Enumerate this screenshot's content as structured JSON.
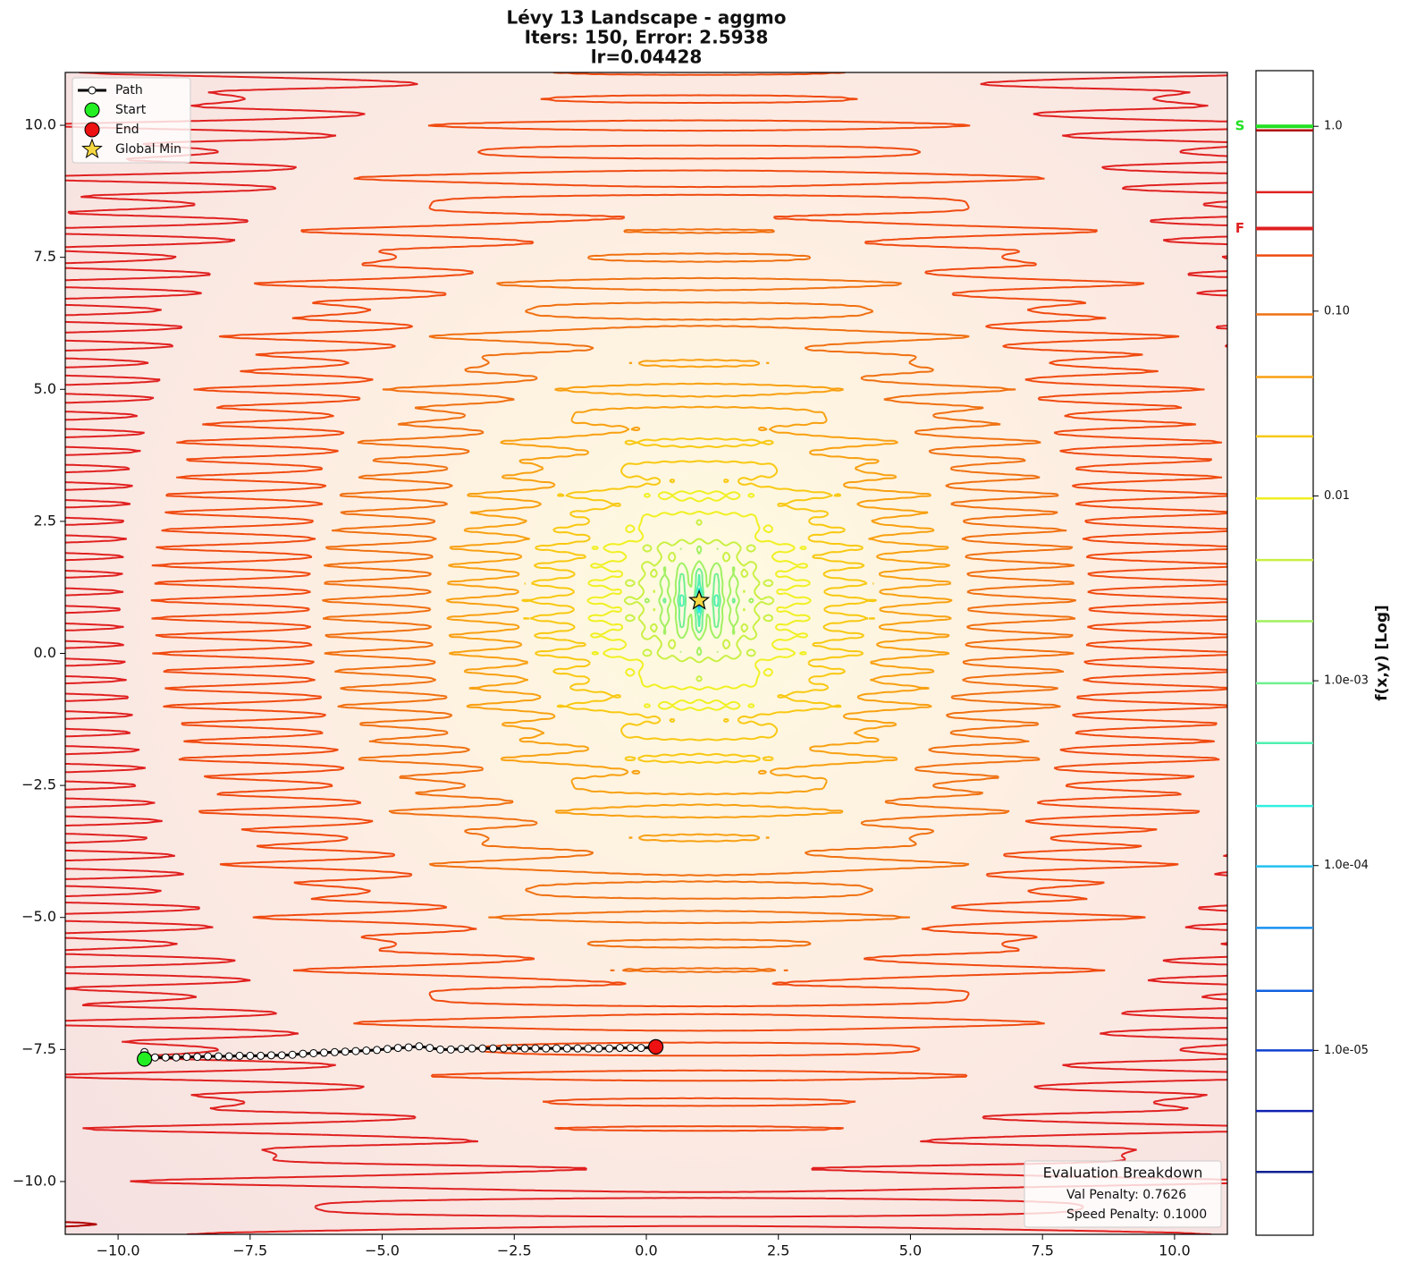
{
  "chart_data": {
    "type": "contour",
    "title": [
      "Lévy 13 Landscape - aggmo",
      "Iters: 150, Error: 2.5938",
      "lr=0.04428"
    ],
    "xlim": [
      -11,
      11
    ],
    "ylim": [
      -11,
      11
    ],
    "xticks": [
      {
        "value": -10,
        "label": "−10.0"
      },
      {
        "value": -7.5,
        "label": "−7.5"
      },
      {
        "value": -5,
        "label": "−5.0"
      },
      {
        "value": -2.5,
        "label": "−2.5"
      },
      {
        "value": 0,
        "label": "0.0"
      },
      {
        "value": 2.5,
        "label": "2.5"
      },
      {
        "value": 5,
        "label": "5.0"
      },
      {
        "value": 7.5,
        "label": "7.5"
      },
      {
        "value": 10,
        "label": "10.0"
      }
    ],
    "yticks": [
      {
        "value": -10,
        "label": "−10.0"
      },
      {
        "value": -7.5,
        "label": "−7.5"
      },
      {
        "value": -5,
        "label": "−5.0"
      },
      {
        "value": -2.5,
        "label": "−2.5"
      },
      {
        "value": 0,
        "label": "0.0"
      },
      {
        "value": 2.5,
        "label": "2.5"
      },
      {
        "value": 5,
        "label": "5.0"
      },
      {
        "value": 7.5,
        "label": "7.5"
      },
      {
        "value": 10,
        "label": "10.0"
      }
    ],
    "contour_levels": [
      0.95,
      0.44,
      0.2,
      0.096,
      0.044,
      0.021,
      0.0097,
      0.0045,
      0.0021,
      0.00097,
      0.00046,
      0.00021,
      9.9e-05,
      4.6e-05,
      2.1e-05,
      1e-05,
      4.7e-06,
      2.2e-06
    ],
    "contour_colors": [
      "#b00000",
      "#e02020",
      "#f04a10",
      "#f07010",
      "#f8a010",
      "#f8c810",
      "#f0f020",
      "#c8f040",
      "#a0f060",
      "#70f090",
      "#50f0b0",
      "#30f0e0",
      "#20c0f0",
      "#1890f0",
      "#1060e0",
      "#1040d0",
      "#1020b0",
      "#102090"
    ],
    "colorbar": {
      "label": "f(x,y) [Log]",
      "log": true,
      "clim": [
        1e-06,
        2
      ],
      "ticks": [
        {
          "value": 1,
          "label": "1.0"
        },
        {
          "value": 0.1,
          "label": "0.10"
        },
        0.01,
        {
          "value": 0.001,
          "label": "1.0e-03"
        },
        {
          "value": 0.0001,
          "label": "1.0e-04"
        },
        {
          "value": 1e-05,
          "label": "1.0e-05"
        }
      ],
      "markers": [
        {
          "label": "S",
          "value": 1.0,
          "color": "#22e022"
        },
        {
          "label": "F",
          "value": 0.28,
          "color": "#e02020"
        }
      ]
    },
    "path": {
      "name": "Path",
      "color": "#000000",
      "x": [
        -9.5,
        -9.45,
        -9.3,
        -9.1,
        -8.9,
        -8.7,
        -8.5,
        -8.3,
        -8.1,
        -7.9,
        -7.7,
        -7.5,
        -7.3,
        -7.1,
        -6.9,
        -6.7,
        -6.5,
        -6.3,
        -6.1,
        -5.9,
        -5.7,
        -5.5,
        -5.3,
        -5.1,
        -4.9,
        -4.7,
        -4.5,
        -4.3,
        -4.1,
        -3.9,
        -3.7,
        -3.5,
        -3.3,
        -3.1,
        -2.9,
        -2.7,
        -2.5,
        -2.3,
        -2.1,
        -1.9,
        -1.7,
        -1.5,
        -1.3,
        -1.1,
        -0.9,
        -0.7,
        -0.5,
        -0.3,
        -0.1,
        0.1,
        0.18
      ],
      "y": [
        -7.55,
        -7.65,
        -7.65,
        -7.65,
        -7.65,
        -7.64,
        -7.64,
        -7.63,
        -7.63,
        -7.63,
        -7.62,
        -7.62,
        -7.62,
        -7.61,
        -7.61,
        -7.6,
        -7.58,
        -7.57,
        -7.56,
        -7.55,
        -7.54,
        -7.53,
        -7.52,
        -7.51,
        -7.49,
        -7.47,
        -7.46,
        -7.44,
        -7.47,
        -7.5,
        -7.5,
        -7.49,
        -7.48,
        -7.48,
        -7.48,
        -7.48,
        -7.48,
        -7.48,
        -7.48,
        -7.48,
        -7.48,
        -7.48,
        -7.48,
        -7.48,
        -7.48,
        -7.48,
        -7.47,
        -7.47,
        -7.47,
        -7.46,
        -7.46
      ]
    },
    "points": [
      {
        "name": "Start",
        "x": -9.5,
        "y": -7.68,
        "color": "#22ee22",
        "marker": "circle"
      },
      {
        "name": "End",
        "x": 0.18,
        "y": -7.45,
        "color": "#ee1111",
        "marker": "circle"
      },
      {
        "name": "Global Min",
        "x": 1,
        "y": 1,
        "color": "#f5d742",
        "marker": "star"
      }
    ],
    "legend": "upper left",
    "eval_box": {
      "title": "Evaluation Breakdown",
      "lines": [
        "Val Penalty: 0.7626",
        "Speed Penalty: 0.1000"
      ]
    }
  }
}
